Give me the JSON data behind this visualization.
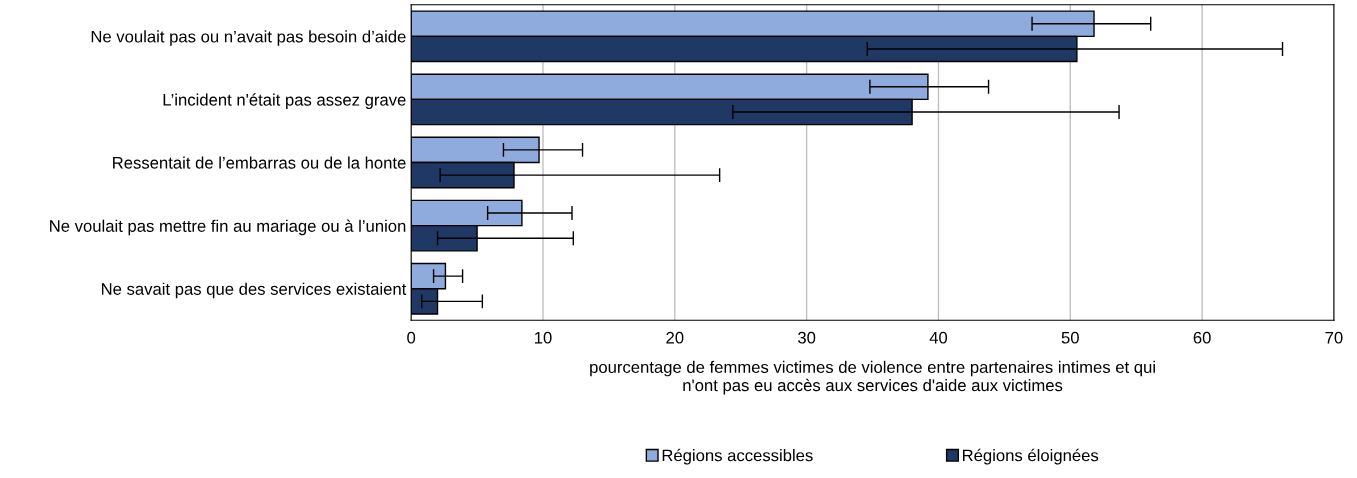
{
  "chart_data": {
    "type": "bar",
    "orientation": "horizontal",
    "categories": [
      "Ne voulait pas ou n’avait pas besoin d’aide",
      "L’incident n'était pas assez grave",
      "Ressentait de l’embarras ou de la honte",
      "Ne voulait pas mettre fin au mariage ou à l’union",
      "Ne savait pas que des services existaient"
    ],
    "series": [
      {
        "name": "Régions accessibles",
        "color": "#8faadc",
        "values": [
          51.8,
          39.2,
          9.7,
          8.4,
          2.6
        ],
        "errors": [
          [
            47.1,
            56.1
          ],
          [
            34.8,
            43.8
          ],
          [
            7.0,
            13.0
          ],
          [
            5.8,
            12.2
          ],
          [
            1.7,
            3.9
          ]
        ]
      },
      {
        "name": "Régions éloignées",
        "color": "#1f3864",
        "values": [
          50.5,
          38.0,
          7.8,
          5.0,
          2.0
        ],
        "errors": [
          [
            34.6,
            66.1
          ],
          [
            24.4,
            53.7
          ],
          [
            2.2,
            23.4
          ],
          [
            2.0,
            12.3
          ],
          [
            0.8,
            5.4
          ]
        ]
      }
    ],
    "xlabel": "pourcentage de femmes victimes de violence entre partenaires intimes et qui\nn'ont pas eu accès aux services d'aide aux victimes",
    "xlim": [
      0,
      70
    ],
    "xticks": [
      0,
      10,
      20,
      30,
      40,
      50,
      60,
      70
    ],
    "grid": "x",
    "legend": "bottom"
  }
}
